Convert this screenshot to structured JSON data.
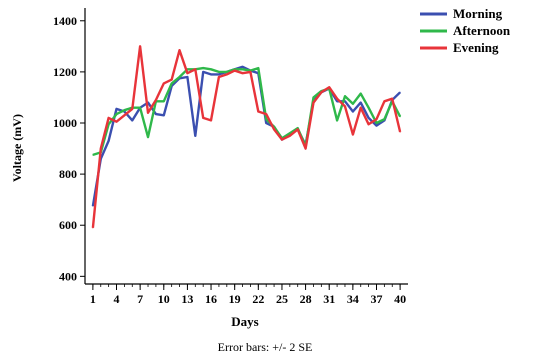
{
  "chart_data": {
    "type": "line",
    "xlabel": "Days",
    "ylabel": "Voltage (mV)",
    "note": "Error bars: +/- 2 SE",
    "xlim": [
      0,
      41
    ],
    "ylim": [
      370,
      1450
    ],
    "x_ticks": [
      1,
      4,
      7,
      10,
      13,
      16,
      19,
      22,
      25,
      28,
      31,
      34,
      37,
      40
    ],
    "y_ticks": [
      400,
      600,
      800,
      1000,
      1200,
      1400
    ],
    "legend_position": "top-right",
    "x": [
      1,
      2,
      3,
      4,
      5,
      6,
      7,
      8,
      9,
      10,
      11,
      12,
      13,
      14,
      15,
      16,
      17,
      18,
      19,
      20,
      21,
      22,
      23,
      24,
      25,
      26,
      27,
      28,
      29,
      30,
      31,
      32,
      33,
      34,
      35,
      36,
      37,
      38,
      39,
      40
    ],
    "series": [
      {
        "name": "Morning",
        "color": "#3b4fb0",
        "values": [
          675,
          860,
          930,
          1055,
          1045,
          1010,
          1060,
          1080,
          1035,
          1030,
          1145,
          1175,
          1180,
          950,
          1200,
          1190,
          1190,
          1200,
          1210,
          1220,
          1205,
          1195,
          1000,
          985,
          935,
          955,
          975,
          915,
          1085,
          1120,
          1135,
          1085,
          1085,
          1045,
          1080,
          1020,
          990,
          1010,
          1090,
          1120
        ]
      },
      {
        "name": "Afternoon",
        "color": "#2fb84a",
        "values": [
          875,
          885,
          995,
          1035,
          1050,
          1060,
          1060,
          945,
          1085,
          1085,
          1155,
          1180,
          1210,
          1210,
          1215,
          1210,
          1200,
          1200,
          1210,
          1210,
          1205,
          1215,
          1015,
          985,
          940,
          960,
          980,
          910,
          1100,
          1125,
          1135,
          1010,
          1105,
          1075,
          1115,
          1060,
          1000,
          1015,
          1085,
          1025
        ]
      },
      {
        "name": "Evening",
        "color": "#e8343a",
        "values": [
          590,
          900,
          1020,
          1005,
          1030,
          1055,
          1300,
          1040,
          1090,
          1155,
          1170,
          1285,
          1195,
          1210,
          1020,
          1010,
          1180,
          1190,
          1205,
          1195,
          1200,
          1045,
          1035,
          975,
          935,
          950,
          975,
          900,
          1080,
          1120,
          1140,
          1095,
          1065,
          955,
          1060,
          995,
          1015,
          1085,
          1095,
          965
        ]
      }
    ]
  }
}
